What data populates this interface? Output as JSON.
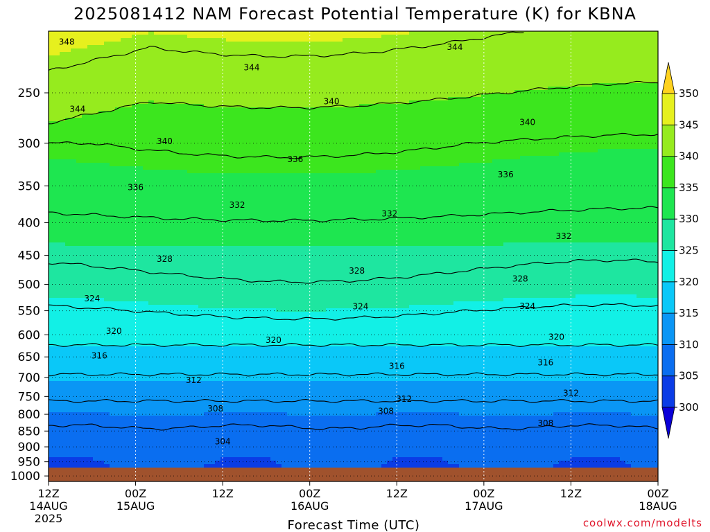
{
  "chart_data": {
    "type": "heatmap",
    "title": "2025081412 NAM Forecast Potential Temperature (K) for KBNA",
    "xlabel": "Forecast Time (UTC)",
    "ylabel": "",
    "credit": "coolwx.com/modelts",
    "x_ticks": [
      {
        "hours": 0,
        "label": "12Z",
        "sub": "14AUG",
        "sub2": "2025"
      },
      {
        "hours": 12,
        "label": "00Z",
        "sub": "15AUG",
        "sub2": ""
      },
      {
        "hours": 24,
        "label": "12Z",
        "sub": "",
        "sub2": ""
      },
      {
        "hours": 36,
        "label": "00Z",
        "sub": "16AUG",
        "sub2": ""
      },
      {
        "hours": 48,
        "label": "12Z",
        "sub": "",
        "sub2": ""
      },
      {
        "hours": 60,
        "label": "00Z",
        "sub": "17AUG",
        "sub2": ""
      },
      {
        "hours": 72,
        "label": "12Z",
        "sub": "",
        "sub2": ""
      },
      {
        "hours": 84,
        "label": "00Z",
        "sub": "18AUG",
        "sub2": ""
      }
    ],
    "xlim_hours": [
      0,
      84
    ],
    "y_ticks": [
      250,
      300,
      350,
      400,
      450,
      500,
      550,
      600,
      650,
      700,
      750,
      800,
      850,
      900,
      950,
      1000
    ],
    "ylim_hpa": [
      200,
      1020
    ],
    "y_scale": "log pressure (inverted)",
    "grid": "dotted",
    "colorbar": {
      "levels": [
        300,
        305,
        310,
        315,
        320,
        325,
        330,
        335,
        340,
        345,
        350
      ],
      "colors": [
        "#0a00d8",
        "#0a3ce6",
        "#0a6ef0",
        "#0a96f5",
        "#0ac8f8",
        "#12f0e6",
        "#1ee6a0",
        "#1ee650",
        "#3ce61e",
        "#96eb1e",
        "#e6f01e",
        "#ffd21e"
      ]
    },
    "contour_interval_K": 4,
    "contour_labels": [
      {
        "h": 2.5,
        "p": 208,
        "v": "348"
      },
      {
        "h": 56,
        "p": 212,
        "v": "344"
      },
      {
        "h": 28,
        "p": 228,
        "v": "344"
      },
      {
        "h": 4,
        "p": 265,
        "v": "344"
      },
      {
        "h": 39,
        "p": 258,
        "v": "340"
      },
      {
        "h": 66,
        "p": 278,
        "v": "340"
      },
      {
        "h": 16,
        "p": 298,
        "v": "340"
      },
      {
        "h": 34,
        "p": 318,
        "v": "336"
      },
      {
        "h": 63,
        "p": 336,
        "v": "336"
      },
      {
        "h": 12,
        "p": 352,
        "v": "336"
      },
      {
        "h": 26,
        "p": 375,
        "v": "332"
      },
      {
        "h": 47,
        "p": 387,
        "v": "332"
      },
      {
        "h": 71,
        "p": 420,
        "v": "332"
      },
      {
        "h": 16,
        "p": 456,
        "v": "328"
      },
      {
        "h": 42.5,
        "p": 476,
        "v": "328"
      },
      {
        "h": 65,
        "p": 490,
        "v": "328"
      },
      {
        "h": 6,
        "p": 526,
        "v": "324"
      },
      {
        "h": 43,
        "p": 542,
        "v": "324"
      },
      {
        "h": 66,
        "p": 541,
        "v": "324"
      },
      {
        "h": 9,
        "p": 592,
        "v": "320"
      },
      {
        "h": 31,
        "p": 612,
        "v": "320"
      },
      {
        "h": 70,
        "p": 605,
        "v": "320"
      },
      {
        "h": 7,
        "p": 647,
        "v": "316"
      },
      {
        "h": 48,
        "p": 672,
        "v": "316"
      },
      {
        "h": 68.5,
        "p": 664,
        "v": "316"
      },
      {
        "h": 20,
        "p": 707,
        "v": "312"
      },
      {
        "h": 49,
        "p": 757,
        "v": "312"
      },
      {
        "h": 72,
        "p": 741,
        "v": "312"
      },
      {
        "h": 23,
        "p": 784,
        "v": "308"
      },
      {
        "h": 46.5,
        "p": 791,
        "v": "308"
      },
      {
        "h": 68.5,
        "p": 826,
        "v": "308"
      },
      {
        "h": 24,
        "p": 883,
        "v": "304"
      }
    ]
  }
}
